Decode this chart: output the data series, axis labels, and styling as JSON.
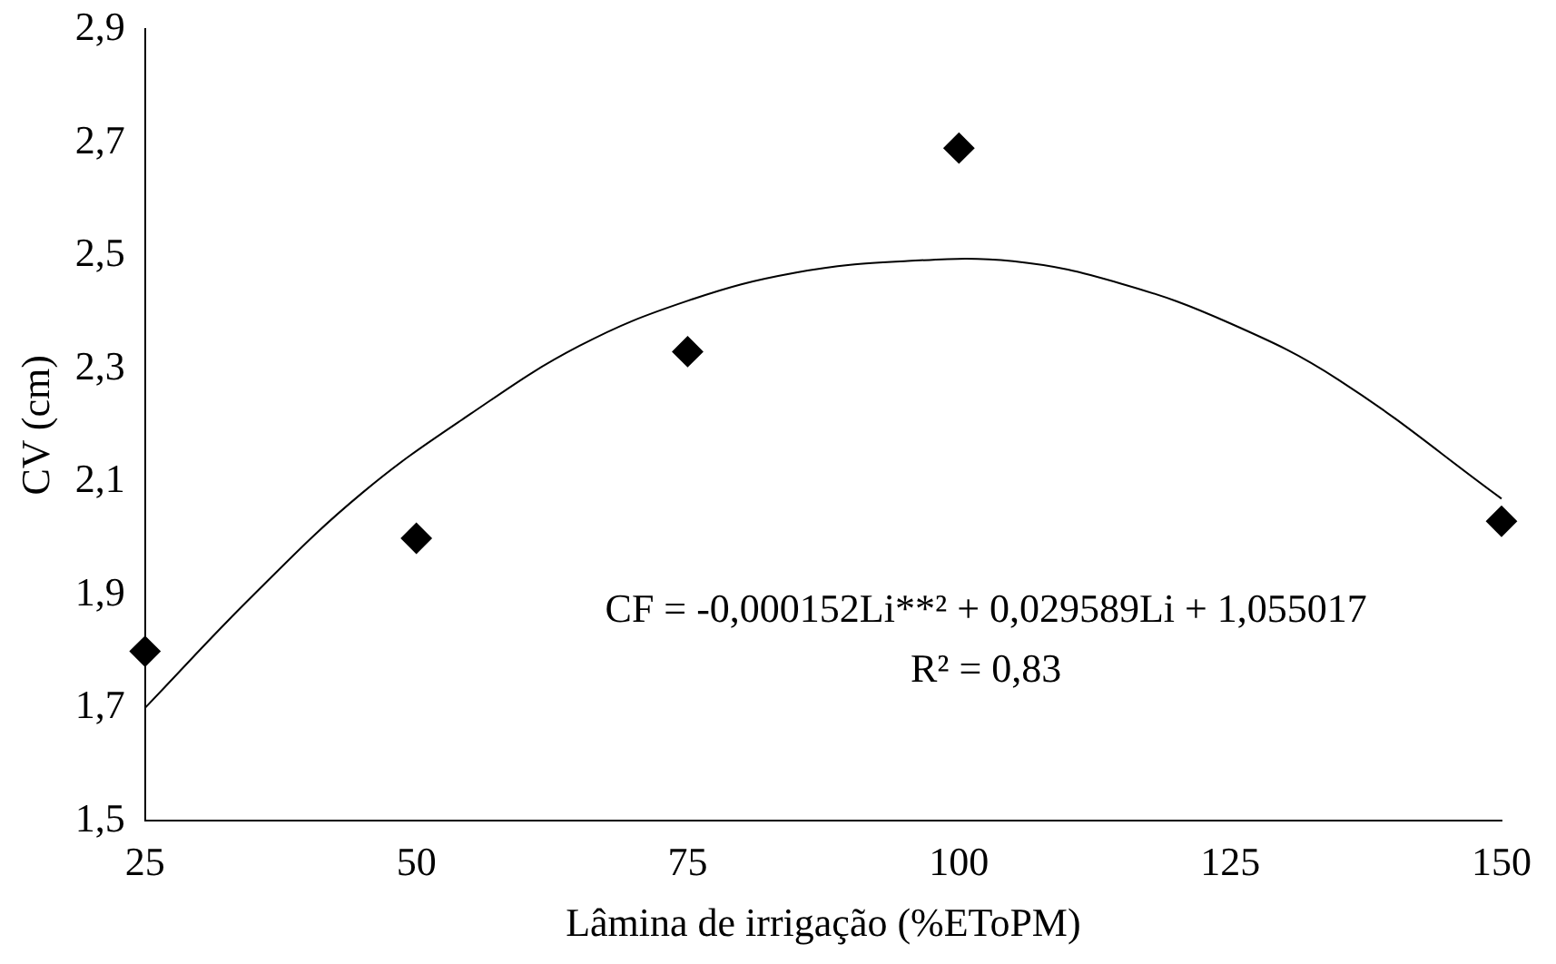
{
  "chart_data": {
    "type": "scatter",
    "xlabel": "Lâmina de irrigação (%EToPM)",
    "ylabel": "CV (cm)",
    "xlim": [
      25,
      150
    ],
    "xticks": [
      25,
      50,
      75,
      100,
      125,
      150
    ],
    "ylim": [
      1.5,
      2.9
    ],
    "yticks": [
      {
        "value": 1.5,
        "label": "1,5"
      },
      {
        "value": 1.7,
        "label": "1,7"
      },
      {
        "value": 1.9,
        "label": "1,9"
      },
      {
        "value": 2.1,
        "label": "2,1"
      },
      {
        "value": 2.3,
        "label": "2,3"
      },
      {
        "value": 2.5,
        "label": "2,5"
      },
      {
        "value": 2.7,
        "label": "2,7"
      },
      {
        "value": 2.9,
        "label": "2,9"
      }
    ],
    "grid": false,
    "legend": false,
    "series": [
      {
        "color": "#000000",
        "marker": "diamond",
        "x": [
          25,
          50,
          75,
          100,
          150
        ],
        "values": [
          1.8,
          2.0,
          2.33,
          2.69,
          2.03
        ]
      },
      {
        "type": "line",
        "color": "#000000",
        "marker": "none",
        "line_style": "solid",
        "x": [
          25,
          35,
          45,
          55,
          65,
          75,
          85,
          95,
          105,
          115,
          125,
          135,
          150
        ],
        "values": [
          1.7,
          1.9,
          2.08,
          2.22,
          2.34,
          2.42,
          2.47,
          2.49,
          2.49,
          2.45,
          2.38,
          2.28,
          2.07
        ]
      }
    ],
    "annotations": [
      "CF = -0,000152Li**² + 0,029589Li + 1,055017",
      "R² = 0,83"
    ]
  }
}
